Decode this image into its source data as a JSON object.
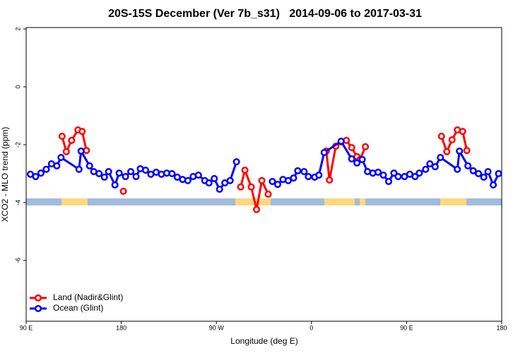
{
  "chart_data": {
    "type": "line",
    "title": "20S-15S December (Ver 7b_s31)   2014-09-06 to 2017-03-31",
    "x_label": "Longitude (deg E)",
    "y_label": "XCO2 - MLO trend (ppm)",
    "xlim": [
      90,
      540
    ],
    "ylim": [
      -8.1,
      2.05
    ],
    "xticks": [
      {
        "value": 90,
        "label": "90 E"
      },
      180,
      {
        "value": 270,
        "label": "90 W"
      },
      {
        "value": 360,
        "label": "0"
      },
      {
        "value": 450,
        "label": "90 E"
      },
      {
        "value": 540,
        "label": "180"
      }
    ],
    "yticks": [
      2,
      0,
      -2,
      -4,
      -6
    ],
    "legend": "bottom-left",
    "series": [
      {
        "name": "Land (Nadir&Glint)",
        "color": "#ff0000",
        "x": [
          124,
          128,
          133,
          139,
          143,
          147,
          165,
          182,
          240,
          293,
          297,
          303,
          308,
          313,
          319,
          345,
          374,
          377,
          383,
          388,
          393,
          398,
          403,
          406,
          411,
          450,
          483,
          488,
          493,
          498,
          503,
          507
        ],
        "values": [
          -1.71,
          -2.24,
          -1.85,
          -1.49,
          -1.54,
          -2.2,
          null,
          -3.61,
          null,
          -3.46,
          -2.88,
          -3.46,
          -4.24,
          -3.24,
          -3.71,
          null,
          -2.22,
          -3.22,
          -2.05,
          -1.9,
          -1.85,
          -2.1,
          -2.41,
          -2.51,
          -2.07,
          null,
          -1.71,
          -2.24,
          -1.83,
          -1.49,
          -1.54,
          -2.2
        ]
      },
      {
        "name": "Ocean (Glint)",
        "color": "#0000ff",
        "x": [
          94,
          99,
          104,
          109,
          114,
          119,
          123,
          140,
          142,
          150,
          154,
          159,
          164,
          168,
          174,
          178,
          184,
          189,
          194,
          198,
          203,
          208,
          213,
          218,
          223,
          228,
          233,
          238,
          243,
          248,
          253,
          259,
          263,
          268,
          273,
          278,
          283,
          289,
          306,
          323,
          328,
          333,
          338,
          343,
          347,
          353,
          357,
          363,
          367,
          372,
          388,
          398,
          403,
          408,
          413,
          418,
          423,
          428,
          433,
          438,
          442,
          448,
          453,
          458,
          462,
          468,
          472,
          477,
          482,
          498,
          500,
          508,
          513,
          518,
          523,
          527,
          532,
          537
        ],
        "values": [
          -3.02,
          -3.1,
          -2.98,
          -2.85,
          -2.66,
          -2.73,
          -2.44,
          -2.85,
          -2.22,
          -2.73,
          -2.93,
          -3.0,
          -3.12,
          -2.93,
          -3.39,
          -2.98,
          -3.1,
          -2.93,
          -3.1,
          -2.83,
          -2.88,
          -3.02,
          -2.95,
          -3.02,
          -2.98,
          -3.0,
          -3.12,
          -3.2,
          -3.24,
          -3.1,
          -3.05,
          -3.24,
          -3.32,
          -3.17,
          -3.54,
          -3.32,
          -3.24,
          -2.59,
          null,
          -3.27,
          -3.37,
          -3.2,
          -3.24,
          -3.15,
          -2.9,
          -2.93,
          -3.1,
          -3.12,
          -3.05,
          -2.27,
          -1.88,
          -2.49,
          -2.63,
          -2.51,
          -2.93,
          -2.98,
          -2.95,
          -3.05,
          -3.27,
          -2.98,
          -3.1,
          -3.1,
          -3.02,
          -3.1,
          -2.98,
          -2.85,
          -2.66,
          -2.76,
          -2.44,
          -2.85,
          -2.22,
          -2.73,
          -2.9,
          -3.0,
          -3.12,
          -2.93,
          -3.39,
          -3.0
        ]
      }
    ]
  }
}
